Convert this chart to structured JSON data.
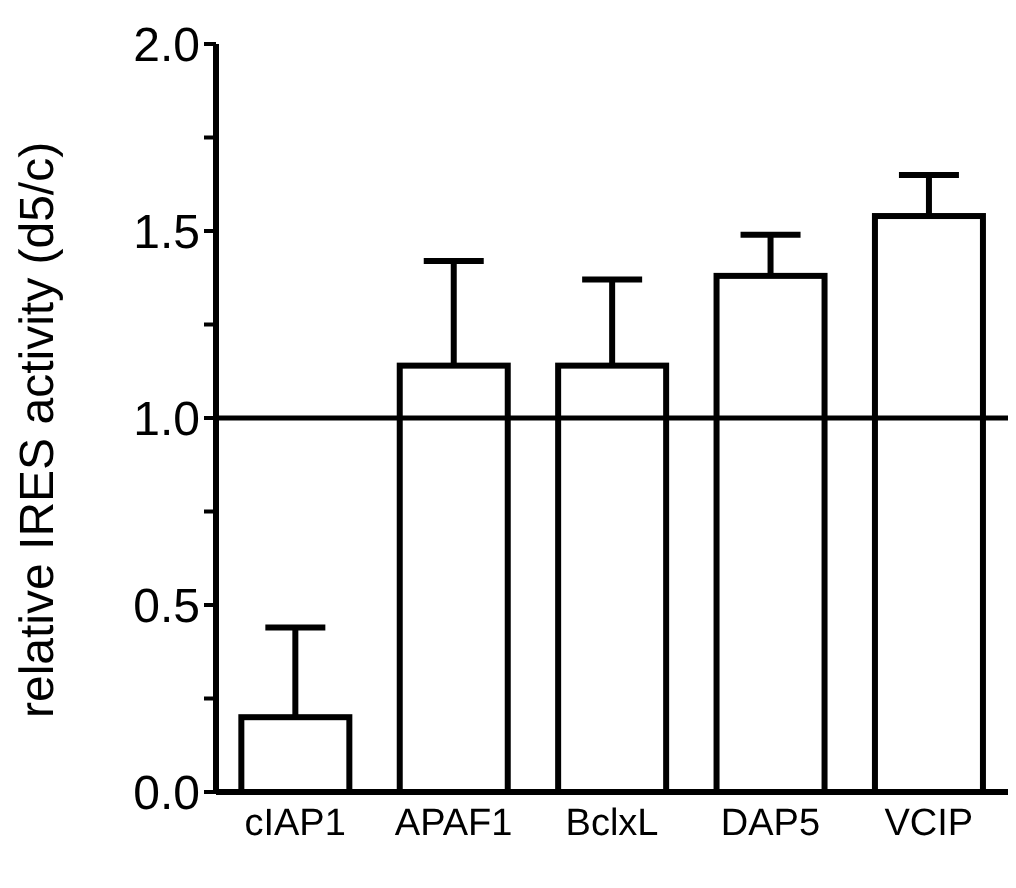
{
  "chart_data": {
    "type": "bar",
    "ylabel": "relative IRES activity (d5/c)",
    "categories": [
      "cIAP1",
      "APAF1",
      "BclxL",
      "DAP5",
      "VCIP"
    ],
    "values": [
      0.2,
      1.14,
      1.14,
      1.38,
      1.54
    ],
    "errors": [
      [
        0.2,
        0.44
      ],
      [
        1.14,
        1.42
      ],
      [
        1.14,
        1.37
      ],
      [
        1.38,
        1.49
      ],
      [
        1.54,
        1.65
      ]
    ],
    "color": "#ffffff",
    "ylim": [
      0,
      2
    ],
    "yticks": [
      {
        "value": 0,
        "label": "0.0"
      },
      {
        "value": 0.25,
        "label": null
      },
      {
        "value": 0.5,
        "label": "0.5"
      },
      {
        "value": 0.75,
        "label": null
      },
      {
        "value": 1,
        "label": "1.0"
      },
      {
        "value": 1.25,
        "label": null
      },
      {
        "value": 1.5,
        "label": "1.5"
      },
      {
        "value": 1.75,
        "label": null
      },
      {
        "value": 2,
        "label": "2.0"
      }
    ],
    "ref_lines": [
      {
        "axis": "y",
        "value": 1,
        "color": "#000000"
      }
    ],
    "grid": false,
    "legend": false
  }
}
